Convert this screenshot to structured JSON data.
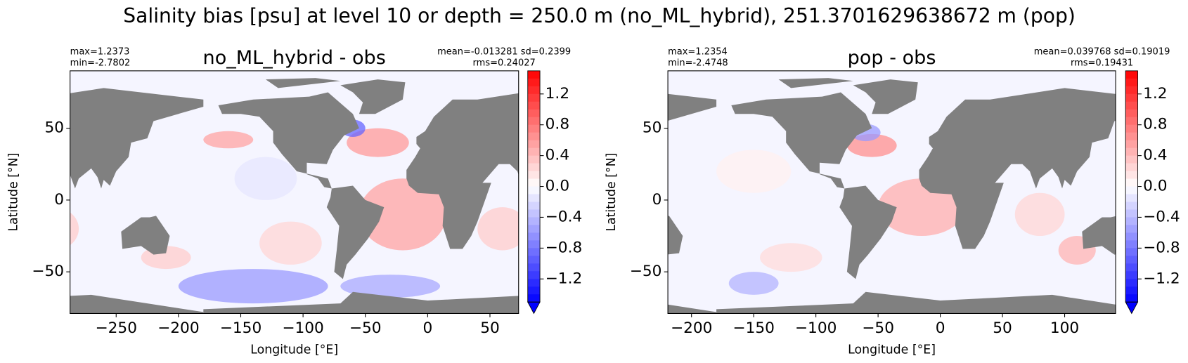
{
  "title": "Salinity bias [psu] at level 10 or depth = 250.0 m (no_ML_hybrid), 251.3701629638672 m (pop)",
  "chart_data": [
    {
      "type": "map",
      "title": "no_ML_hybrid - obs",
      "xlabel": "Longitude [°E]",
      "ylabel": "Latitude [°N]",
      "stats_left": [
        "max=1.2373",
        "min=-2.7802"
      ],
      "stats_right": [
        "mean=-0.013281 sd=0.2399",
        "rms=0.24027"
      ],
      "xlim": [
        -287,
        73
      ],
      "ylim": [
        -79,
        90
      ],
      "xticks": [
        {
          "value": -250,
          "label": "−250"
        },
        {
          "value": -200,
          "label": "−200"
        },
        {
          "value": -150,
          "label": "−150"
        },
        {
          "value": -100,
          "label": "−100"
        },
        {
          "value": -50,
          "label": "−50"
        },
        0,
        50
      ],
      "yticks": [
        {
          "value": -50,
          "label": "−50"
        },
        0,
        50
      ],
      "clim": [
        -1.5,
        1.5
      ],
      "extend": "min",
      "levels": 30,
      "cticks": [
        {
          "value": -1.2,
          "label": "−1.2"
        },
        {
          "value": -0.8,
          "label": "−0.8"
        },
        {
          "value": -0.4,
          "label": "−0.4"
        },
        {
          "value": 0,
          "label": "0.0"
        },
        {
          "value": 0.4,
          "label": "0.4"
        },
        {
          "value": 0.8,
          "label": "0.8"
        },
        {
          "value": 1.2,
          "label": "1.2"
        }
      ],
      "colormap": [
        "#0000ff",
        "#ffffff",
        "#ff0000"
      ],
      "land_color": "#808080"
    },
    {
      "type": "map",
      "title": "pop - obs",
      "xlabel": "Longitude [°E]",
      "ylabel": "Latitude [°N]",
      "stats_left": [
        "max=1.2354",
        "min=-2.4748"
      ],
      "stats_right": [
        "mean=0.039768 sd=0.19019",
        "rms=0.19431"
      ],
      "xlim": [
        -219,
        141
      ],
      "ylim": [
        -79,
        90
      ],
      "xticks": [
        {
          "value": -200,
          "label": "−200"
        },
        {
          "value": -150,
          "label": "−150"
        },
        {
          "value": -100,
          "label": "−100"
        },
        {
          "value": -50,
          "label": "−50"
        },
        0,
        50,
        100
      ],
      "yticks": [
        {
          "value": -50,
          "label": "−50"
        },
        0,
        50
      ],
      "clim": [
        -1.5,
        1.5
      ],
      "extend": "min",
      "levels": 30,
      "cticks": [
        {
          "value": -1.2,
          "label": "−1.2"
        },
        {
          "value": -0.8,
          "label": "−0.8"
        },
        {
          "value": -0.4,
          "label": "−0.4"
        },
        {
          "value": 0,
          "label": "0.0"
        },
        {
          "value": 0.4,
          "label": "0.4"
        },
        {
          "value": 0.8,
          "label": "0.8"
        },
        {
          "value": 1.2,
          "label": "1.2"
        }
      ],
      "colormap": [
        "#0000ff",
        "#ffffff",
        "#ff0000"
      ],
      "land_color": "#808080"
    }
  ]
}
